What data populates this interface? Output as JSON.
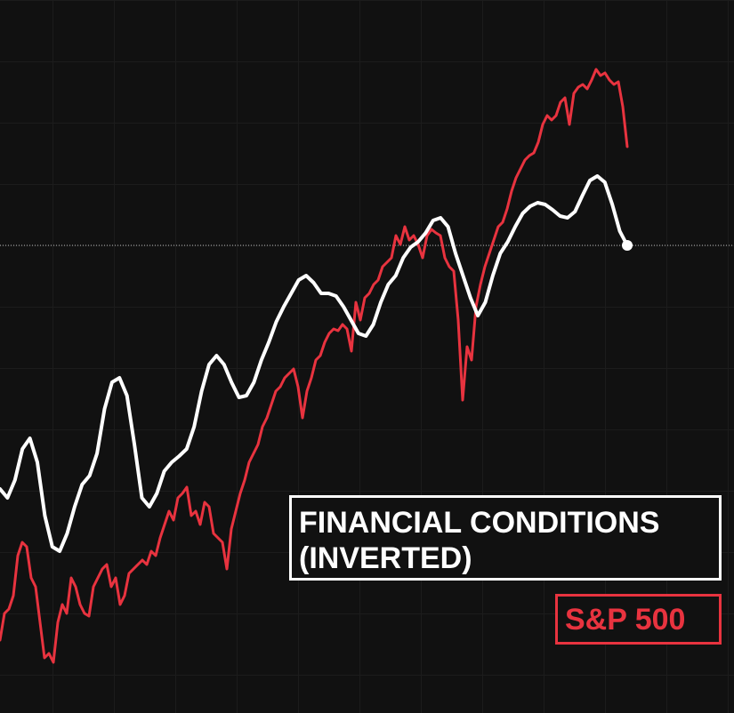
{
  "chart_data": {
    "type": "line",
    "ylim": [
      0,
      802
    ],
    "grid": true,
    "series": [
      {
        "name": "FINANCIAL CONDITIONS (INVERTED)",
        "color": "#ffffff",
        "values": [
          252,
          242,
          262,
          297,
          309,
          282,
          222,
          187,
          182,
          202,
          232,
          257,
          267,
          292,
          342,
          372,
          377,
          357,
          302,
          242,
          232,
          247,
          272,
          282,
          289,
          297,
          322,
          362,
          392,
          402,
          392,
          372,
          355,
          357,
          372,
          397,
          417,
          440,
          457,
          472,
          487,
          492,
          484,
          472,
          472,
          469,
          457,
          442,
          427,
          424,
          437,
          462,
          482,
          492,
          512,
          524,
          530,
          540,
          554,
          557,
          547,
          517,
          492,
          467,
          447,
          462,
          492,
          517,
          530,
          547,
          562,
          570,
          574,
          572,
          566,
          559,
          557,
          564,
          582,
          599,
          604,
          597,
          572,
          542,
          526
        ]
      },
      {
        "name": "S&P 500",
        "color": "#e8333f",
        "values": [
          82,
          112,
          117,
          132,
          177,
          192,
          187,
          152,
          142,
          102,
          62,
          67,
          57,
          102,
          122,
          112,
          152,
          142,
          122,
          112,
          109,
          142,
          152,
          162,
          167,
          142,
          152,
          122,
          132,
          157,
          162,
          167,
          172,
          167,
          182,
          177,
          197,
          212,
          227,
          217,
          242,
          247,
          254,
          222,
          227,
          212,
          237,
          232,
          202,
          197,
          192,
          162,
          207,
          227,
          247,
          262,
          282,
          292,
          302,
          322,
          332,
          347,
          362,
          367,
          377,
          382,
          387,
          367,
          332,
          362,
          377,
          397,
          402,
          417,
          427,
          432,
          430,
          437,
          432,
          407,
          462,
          442,
          467,
          472,
          482,
          487,
          502,
          507,
          512,
          537,
          527,
          547,
          532,
          537,
          527,
          512,
          537,
          544,
          540,
          537,
          512,
          502,
          497,
          442,
          352,
          412,
          397,
          457,
          482,
          502,
          517,
          532,
          547,
          552,
          567,
          587,
          602,
          612,
          622,
          627,
          630,
          642,
          662,
          672,
          667,
          672,
          687,
          692,
          662,
          697,
          704,
          707,
          702,
          712,
          724,
          717,
          720,
          712,
          707,
          710,
          682,
          637
        ]
      }
    ]
  }
}
